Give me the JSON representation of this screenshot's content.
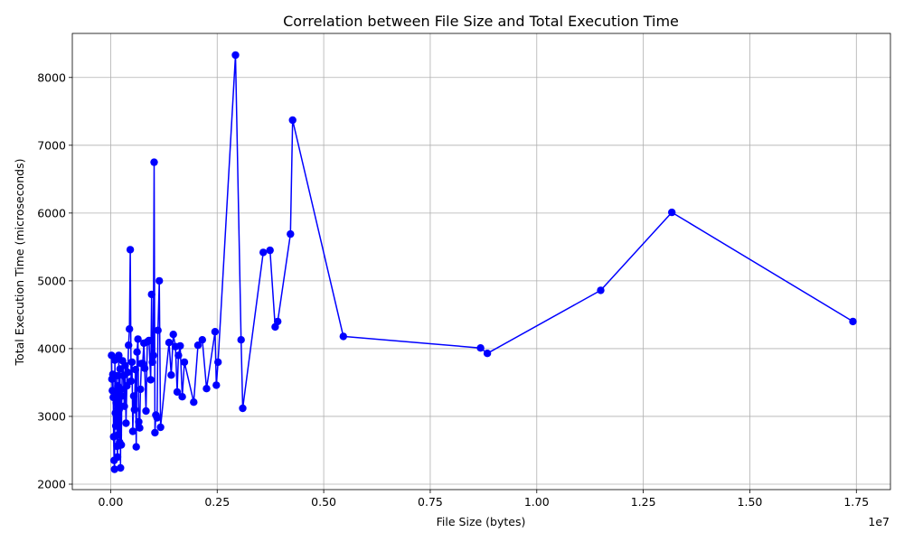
{
  "chart_data": {
    "type": "line",
    "title": "Correlation between File Size and Total Execution Time",
    "xlabel": "File Size (bytes)",
    "ylabel": "Total Execution Time (microseconds)",
    "x_offset_label": "1e7",
    "xlim": [
      -900000,
      18300000
    ],
    "ylim": [
      1920,
      8650
    ],
    "x_ticks": [
      0,
      2500000,
      5000000,
      7500000,
      10000000,
      12500000,
      15000000,
      17500000
    ],
    "x_tick_labels": [
      "0.00",
      "0.25",
      "0.50",
      "0.75",
      "1.00",
      "1.25",
      "1.50",
      "1.75"
    ],
    "y_ticks": [
      2000,
      3000,
      4000,
      5000,
      6000,
      7000,
      8000
    ],
    "y_tick_labels": [
      "2000",
      "3000",
      "4000",
      "5000",
      "6000",
      "7000",
      "8000"
    ],
    "grid": true,
    "color": "#0000ff",
    "series": [
      {
        "x": [
          20000,
          30000,
          40000,
          50000,
          60000,
          70000,
          80000,
          90000,
          100000,
          110000,
          120000,
          130000,
          140000,
          150000,
          160000,
          170000,
          180000,
          190000,
          200000,
          210000,
          220000,
          230000,
          240000,
          250000,
          260000,
          280000,
          300000,
          320000,
          340000,
          360000,
          380000,
          400000,
          420000,
          440000,
          460000,
          480000,
          500000,
          520000,
          540000,
          560000,
          580000,
          600000,
          620000,
          640000,
          660000,
          680000,
          700000,
          720000,
          750000,
          780000,
          800000,
          830000,
          860000,
          900000,
          940000,
          960000,
          980000,
          1000000,
          1020000,
          1040000,
          1060000,
          1090000,
          1110000,
          1140000,
          1170000,
          1370000,
          1420000,
          1470000,
          1520000,
          1560000,
          1590000,
          1630000,
          1680000,
          1730000,
          1950000,
          2050000,
          2150000,
          2250000,
          2450000,
          2480000,
          2520000,
          2930000,
          3060000,
          3100000,
          3580000,
          3740000,
          3860000,
          3920000,
          4220000,
          4270000,
          5460000,
          8680000,
          8840000,
          11500000,
          13170000,
          17420000
        ],
        "y": [
          3900,
          3550,
          3380,
          3620,
          3280,
          2700,
          2350,
          2220,
          3830,
          3050,
          2860,
          3200,
          3600,
          2560,
          2400,
          3450,
          2730,
          3900,
          3100,
          2620,
          3700,
          2240,
          3400,
          2580,
          3300,
          3820,
          3600,
          3150,
          3750,
          2900,
          3450,
          3650,
          4050,
          4290,
          5460,
          3520,
          3800,
          2780,
          3300,
          3100,
          3690,
          2550,
          3950,
          4140,
          2920,
          2830,
          3400,
          3780,
          3780,
          4080,
          3710,
          3080,
          4100,
          4120,
          3540,
          4800,
          3800,
          3900,
          6750,
          2760,
          3020,
          2980,
          4270,
          5000,
          2840,
          4090,
          3610,
          4210,
          4030,
          3360,
          3900,
          4040,
          3290,
          3800,
          3210,
          4050,
          4130,
          3410,
          4250,
          3460,
          3800,
          8330,
          4130,
          3120,
          5420,
          5450,
          4320,
          4400,
          5690,
          7370,
          4180,
          4010,
          3930,
          4860,
          6010,
          4400
        ]
      }
    ]
  }
}
